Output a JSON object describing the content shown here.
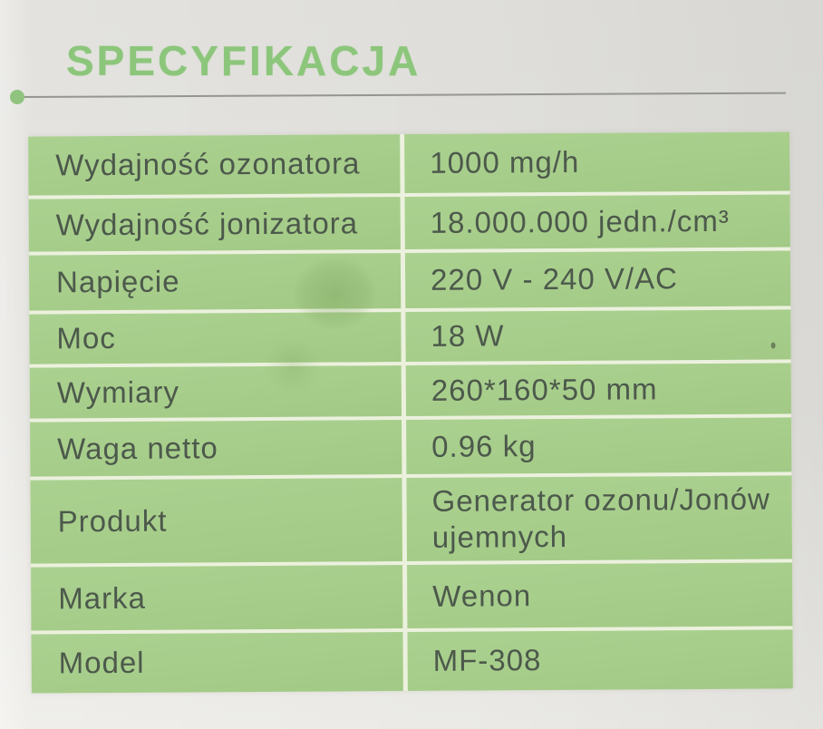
{
  "page": {
    "title": "SPECYFIKACJA"
  },
  "table": {
    "rows": [
      {
        "label": "Wydajność ozonatora",
        "value": "1000 mg/h"
      },
      {
        "label": "Wydajność jonizatora",
        "value": "18.000.000 jedn./cm³"
      },
      {
        "label": "Napięcie",
        "value": "220 V - 240 V/AC"
      },
      {
        "label": "Moc",
        "value": "18 W"
      },
      {
        "label": "Wymiary",
        "value": "260*160*50 mm"
      },
      {
        "label": "Waga netto",
        "value": "0.96 kg"
      },
      {
        "label": "Produkt",
        "value": "Generator ozonu/Jonów ujemnych"
      },
      {
        "label": "Marka",
        "value": "Wenon"
      },
      {
        "label": "Model",
        "value": "MF-308"
      }
    ]
  },
  "colors": {
    "heading_green": "#8cc67b",
    "cell_green": "#a7cd8b",
    "separator": "#ecf1de",
    "text": "#4c594b",
    "paper": "#e5e4e0",
    "rule_line": "#94968f"
  }
}
